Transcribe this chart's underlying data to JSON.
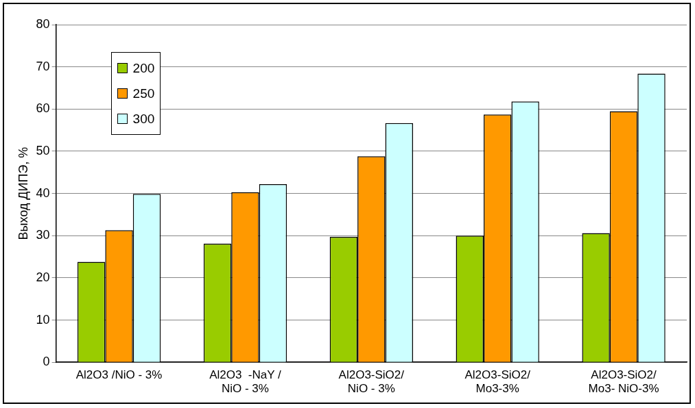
{
  "chart_data": {
    "type": "bar",
    "ylabel": "Выход ДИПЭ, %",
    "categories": [
      "Al2O3 /NiO - 3%",
      "Al2O3  -NaY /\nNiO - 3%",
      "Al2O3-SiO2/\nNiO - 3%",
      "Al2O3-SiO2/\nMo3-3%",
      "Al2O3-SiO2/\nMo3- NiO-3%"
    ],
    "series": [
      {
        "name": "200",
        "color": "#99cc00",
        "values": [
          23.8,
          28.1,
          29.7,
          30.0,
          30.6
        ]
      },
      {
        "name": "250",
        "color": "#ff9900",
        "values": [
          31.3,
          40.3,
          48.8,
          58.7,
          59.5
        ]
      },
      {
        "name": "300",
        "color": "#ccffff",
        "values": [
          39.9,
          42.2,
          56.7,
          61.8,
          68.4
        ]
      }
    ],
    "ylim": [
      0,
      80
    ],
    "yticks": [
      0,
      10,
      20,
      30,
      40,
      50,
      60,
      70,
      80
    ],
    "grid": "y",
    "legend": "top left"
  }
}
